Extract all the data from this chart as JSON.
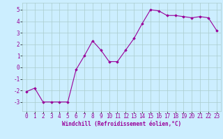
{
  "x": [
    0,
    1,
    2,
    3,
    4,
    5,
    6,
    7,
    8,
    9,
    10,
    11,
    12,
    13,
    14,
    15,
    16,
    17,
    18,
    19,
    20,
    21,
    22,
    23
  ],
  "y": [
    -2.1,
    -1.8,
    -3.0,
    -3.0,
    -3.0,
    -3.0,
    -0.2,
    1.0,
    2.3,
    1.5,
    0.5,
    0.5,
    1.5,
    2.5,
    3.8,
    5.0,
    4.9,
    4.5,
    4.5,
    4.4,
    4.3,
    4.4,
    4.3,
    3.2
  ],
  "line_color": "#990099",
  "marker": "D",
  "marker_size": 1.8,
  "line_width": 0.8,
  "bg_color": "#cceeff",
  "grid_color": "#aacccc",
  "xlabel": "Windchill (Refroidissement éolien,°C)",
  "xlabel_color": "#990099",
  "xlabel_fontsize": 5.5,
  "tick_color": "#990099",
  "tick_fontsize": 5.5,
  "ylim": [
    -3.8,
    5.6
  ],
  "yticks": [
    -3,
    -2,
    -1,
    0,
    1,
    2,
    3,
    4,
    5
  ],
  "xtick_labels": [
    "0",
    "1",
    "2",
    "3",
    "4",
    "5",
    "6",
    "7",
    "8",
    "9",
    "10",
    "11",
    "12",
    "13",
    "14",
    "15",
    "16",
    "17",
    "18",
    "19",
    "20",
    "21",
    "22",
    "23"
  ]
}
